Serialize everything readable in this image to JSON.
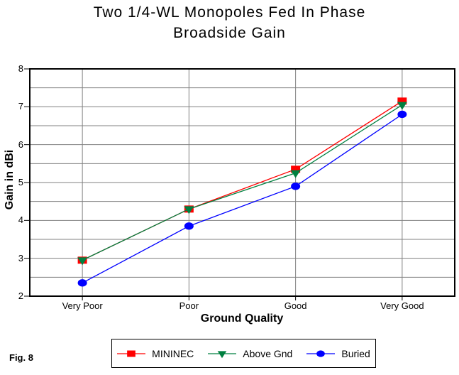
{
  "figure_label": "Fig. 8",
  "chart_data": {
    "type": "line",
    "title": "Two 1/4-WL Monopoles Fed In Phase",
    "subtitle": "Broadside Gain",
    "xlabel": "Ground Quality",
    "ylabel": "Gain in dBi",
    "categories": [
      "Very Poor",
      "Poor",
      "Good",
      "Very Good"
    ],
    "series": [
      {
        "name": "MININEC",
        "color": "#ff0000",
        "marker": "square",
        "values": [
          2.95,
          4.3,
          5.35,
          7.15
        ]
      },
      {
        "name": "Above Gnd",
        "color": "#008040",
        "marker": "triangle-down",
        "values": [
          2.95,
          4.3,
          5.25,
          7.05
        ]
      },
      {
        "name": "Buried",
        "color": "#0000ff",
        "marker": "circle",
        "values": [
          2.35,
          3.85,
          4.9,
          6.8
        ]
      }
    ],
    "ylim": [
      2,
      8
    ],
    "y_ticks": [
      2,
      3,
      4,
      5,
      6,
      7,
      8
    ],
    "y_minor_step": 0.5,
    "grid": true,
    "gridline_color": "#808080",
    "axis_color": "#000000",
    "legend_position": "bottom"
  }
}
